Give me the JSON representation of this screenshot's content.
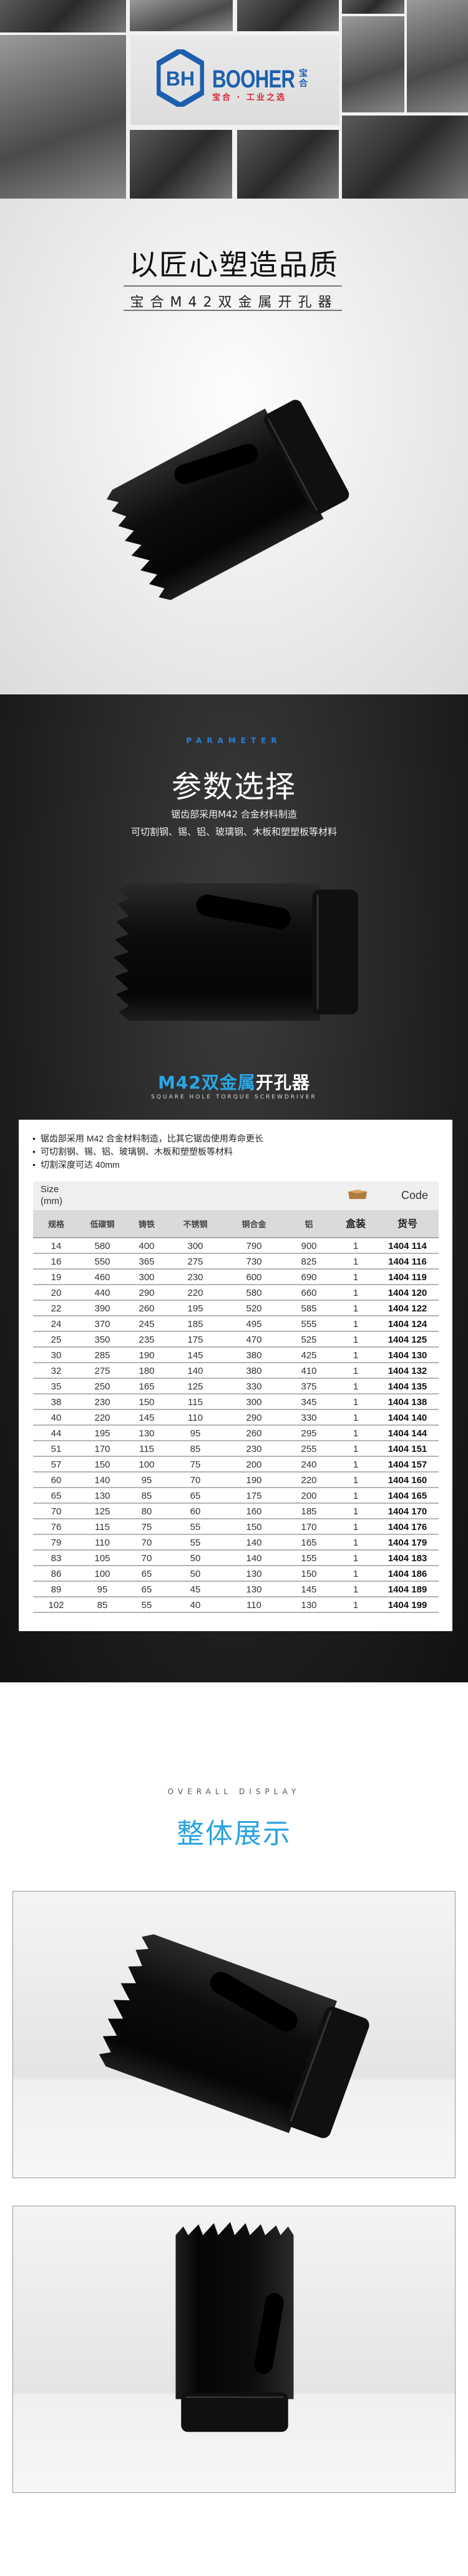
{
  "header": {
    "brand": "BOOHER",
    "brand_cn": "宝合",
    "slogan": "宝合 · 工业之选",
    "logo_mark": "BH",
    "brand_color": "#1d5fae",
    "slogan_color": "#d9263a"
  },
  "quality": {
    "title": "以匠心塑造品质",
    "subtitle": "宝合M42双金属开孔器"
  },
  "parameter": {
    "label_en": "PARAMETER",
    "title": "参数选择",
    "lines": [
      "锯齿部采用M42 合金材料制造",
      "可切割钢、锡、铝、玻璃钢、木板和塑塑板等材料"
    ],
    "product_name_blue": "M42双金属",
    "product_name_white": "开孔器",
    "product_name_en": "SQUARE HOLE TORQUE SCREWDRIVER",
    "accent": "#2aa7e6"
  },
  "spec": {
    "bullets": [
      "锯齿部采用 M42 合金材料制造，比其它锯齿使用寿命更长",
      "可切割钢、锡、铝、玻璃钢、木板和塑塑板等材料",
      "切割深度可达 40mm"
    ],
    "size_label": "Size\n(mm)",
    "box_icon": "cardboard-box-icon",
    "code_label": "Code",
    "columns": [
      "规格",
      "低碳钢",
      "铸铁",
      "不锈钢",
      "铜合金",
      "铝",
      "盒装",
      "货号"
    ],
    "rows": [
      [
        "14",
        "580",
        "400",
        "300",
        "790",
        "900",
        "1",
        "1404 114"
      ],
      [
        "16",
        "550",
        "365",
        "275",
        "730",
        "825",
        "1",
        "1404 116"
      ],
      [
        "19",
        "460",
        "300",
        "230",
        "600",
        "690",
        "1",
        "1404 119"
      ],
      [
        "20",
        "440",
        "290",
        "220",
        "580",
        "660",
        "1",
        "1404 120"
      ],
      [
        "22",
        "390",
        "260",
        "195",
        "520",
        "585",
        "1",
        "1404 122"
      ],
      [
        "24",
        "370",
        "245",
        "185",
        "495",
        "555",
        "1",
        "1404 124"
      ],
      [
        "25",
        "350",
        "235",
        "175",
        "470",
        "525",
        "1",
        "1404 125"
      ],
      [
        "30",
        "285",
        "190",
        "145",
        "380",
        "425",
        "1",
        "1404 130"
      ],
      [
        "32",
        "275",
        "180",
        "140",
        "380",
        "410",
        "1",
        "1404 132"
      ],
      [
        "35",
        "250",
        "165",
        "125",
        "330",
        "375",
        "1",
        "1404 135"
      ],
      [
        "38",
        "230",
        "150",
        "115",
        "300",
        "345",
        "1",
        "1404 138"
      ],
      [
        "40",
        "220",
        "145",
        "110",
        "290",
        "330",
        "1",
        "1404 140"
      ],
      [
        "44",
        "195",
        "130",
        "95",
        "260",
        "295",
        "1",
        "1404 144"
      ],
      [
        "51",
        "170",
        "115",
        "85",
        "230",
        "255",
        "1",
        "1404 151"
      ],
      [
        "57",
        "150",
        "100",
        "75",
        "200",
        "240",
        "1",
        "1404 157"
      ],
      [
        "60",
        "140",
        "95",
        "70",
        "190",
        "220",
        "1",
        "1404 160"
      ],
      [
        "65",
        "130",
        "85",
        "65",
        "175",
        "200",
        "1",
        "1404 165"
      ],
      [
        "70",
        "125",
        "80",
        "60",
        "160",
        "185",
        "1",
        "1404 170"
      ],
      [
        "76",
        "115",
        "75",
        "55",
        "150",
        "170",
        "1",
        "1404 176"
      ],
      [
        "79",
        "110",
        "70",
        "55",
        "140",
        "165",
        "1",
        "1404 179"
      ],
      [
        "83",
        "105",
        "70",
        "50",
        "140",
        "155",
        "1",
        "1404 183"
      ],
      [
        "86",
        "100",
        "65",
        "50",
        "130",
        "150",
        "1",
        "1404 186"
      ],
      [
        "89",
        "95",
        "65",
        "45",
        "130",
        "145",
        "1",
        "1404 189"
      ],
      [
        "102",
        "85",
        "55",
        "40",
        "110",
        "130",
        "1",
        "1404 199"
      ]
    ]
  },
  "overall": {
    "label_en": "OVERALL DISPLAY",
    "title": "整体展示",
    "accent": "#29a3e0"
  }
}
